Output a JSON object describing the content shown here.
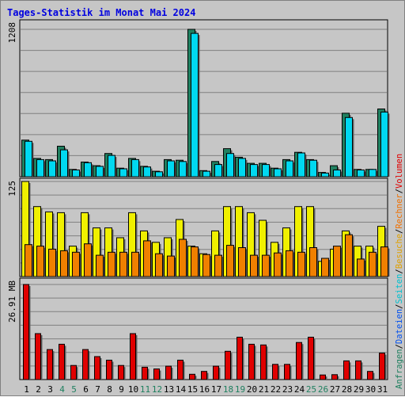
{
  "title": "Tages-Statistik im Monat Mai 2024",
  "chart_data": {
    "type": "bar",
    "title": "Tages-Statistik im Monat Mai 2024",
    "days": [
      "1",
      "2",
      "3",
      "4",
      "5",
      "6",
      "7",
      "8",
      "9",
      "10",
      "11",
      "12",
      "13",
      "14",
      "15",
      "16",
      "17",
      "18",
      "19",
      "20",
      "21",
      "22",
      "23",
      "24",
      "25",
      "26",
      "27",
      "28",
      "29",
      "30",
      "31"
    ],
    "weekend_days": [
      "4",
      "5",
      "11",
      "12",
      "18",
      "19",
      "25",
      "26"
    ],
    "panels": [
      {
        "name": "requests-files",
        "ymax_label": "1208",
        "ymax": 1208,
        "series": [
          {
            "name": "Anfragen",
            "color": "#208060",
            "values": [
              300,
              150,
              140,
              250,
              60,
              120,
              90,
              190,
              70,
              150,
              85,
              45,
              140,
              135,
              1208,
              50,
              125,
              230,
              160,
              110,
              110,
              70,
              140,
              200,
              140,
              35,
              90,
              520,
              60,
              60,
              555
            ]
          },
          {
            "name": "Dateien",
            "color": "#00d8f0",
            "values": [
              290,
              140,
              130,
              220,
              55,
              115,
              85,
              175,
              65,
              140,
              80,
              40,
              130,
              125,
              1175,
              45,
              100,
              190,
              150,
              100,
              100,
              65,
              130,
              195,
              135,
              30,
              55,
              485,
              55,
              60,
              530
            ]
          }
        ]
      },
      {
        "name": "pages-visits",
        "ymax_label": "125",
        "ymax": 125,
        "series": [
          {
            "name": "Seiten",
            "color": "#f0f000",
            "values": [
              125,
              92,
              85,
              84,
              40,
              84,
              64,
              64,
              51,
              84,
              60,
              45,
              51,
              75,
              40,
              30,
              60,
              92,
              92,
              84,
              74,
              45,
              64,
              92,
              92,
              20,
              36,
              60,
              40,
              40,
              66
            ]
          },
          {
            "name": "Besuche",
            "color": "#f08000",
            "values": [
              42,
              40,
              36,
              34,
              32,
              43,
              28,
              32,
              32,
              32,
              47,
              30,
              27,
              49,
              39,
              29,
              28,
              41,
              38,
              28,
              28,
              31,
              34,
              32,
              38,
              24,
              40,
              55,
              23,
              32,
              39
            ]
          }
        ]
      },
      {
        "name": "volume",
        "ymax_label": "26.91 MB",
        "ymax": 26.91,
        "series": [
          {
            "name": "Volumen",
            "color": "#e00000",
            "values": [
              26.91,
              13.0,
              8.5,
              10.0,
              4.0,
              8.5,
              6.5,
              5.5,
              4.0,
              13.0,
              3.5,
              3.0,
              3.8,
              5.5,
              1.5,
              2.3,
              3.8,
              8.0,
              12.0,
              10.0,
              9.8,
              4.3,
              4.3,
              10.5,
              12.0,
              1.3,
              1.4,
              5.3,
              5.3,
              2.3,
              7.5
            ]
          }
        ]
      }
    ],
    "legend_right": [
      {
        "text": "Anfragen",
        "color": "#208060"
      },
      {
        "text": "/",
        "color": "#000000"
      },
      {
        "text": "Dateien",
        "color": "#0050f0"
      },
      {
        "text": "/",
        "color": "#000000"
      },
      {
        "text": "Seiten",
        "color": "#00c0d0"
      },
      {
        "text": "/",
        "color": "#000000"
      },
      {
        "text": "Besuche",
        "color": "#e0a000"
      },
      {
        "text": "/",
        "color": "#000000"
      },
      {
        "text": "Rechner",
        "color": "#f07000"
      },
      {
        "text": "/",
        "color": "#000000"
      },
      {
        "text": "Volumen",
        "color": "#e00000"
      }
    ],
    "grid": true
  },
  "colors": {
    "background": "#c6c6c6",
    "plot_border": "#000000",
    "grid": "#808080",
    "title": "#0000e0",
    "weekday_label": "#000000",
    "weekend_label": "#208060"
  }
}
